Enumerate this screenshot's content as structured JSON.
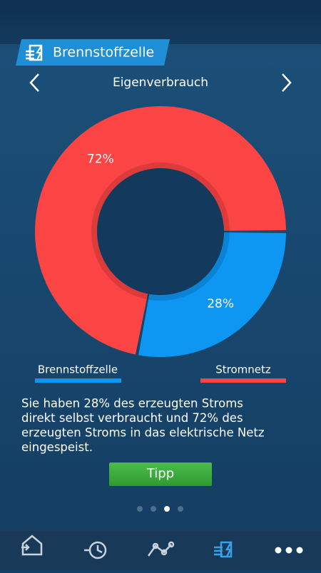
{
  "header": {
    "title": "Brennstoffzelle"
  },
  "nav": {
    "title": "Eigenverbrauch"
  },
  "chart_data": {
    "type": "pie",
    "categories": [
      "Brennstoffzelle",
      "Stromnetz"
    ],
    "values": [
      28,
      72
    ],
    "value_labels": [
      "28%",
      "72%"
    ],
    "colors": [
      "#0d96f2",
      "#fb4444"
    ]
  },
  "description": [
    "Sie haben 28% des erzeugten Stroms",
    "direkt selbst verbraucht und 72% des",
    "erzeugten Stroms in das elektrische Netz",
    "eingespeist."
  ],
  "button": "Tipp"
}
